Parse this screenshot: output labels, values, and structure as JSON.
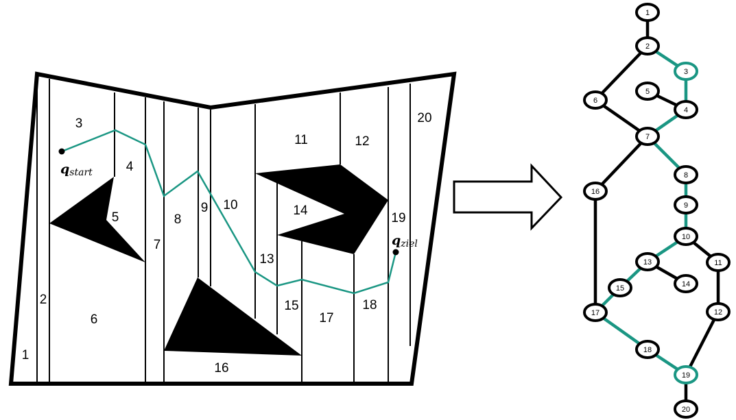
{
  "colors": {
    "outline": "#000000",
    "path": "#1a9683",
    "obstacle": "#000000",
    "background": "#ffffff"
  },
  "map": {
    "cell_labels": [
      "1",
      "2",
      "3",
      "4",
      "5",
      "6",
      "7",
      "8",
      "9",
      "10",
      "11",
      "12",
      "13",
      "14",
      "15",
      "16",
      "17",
      "18",
      "19",
      "20"
    ],
    "start_label": {
      "main": "q",
      "sub": "start"
    },
    "goal_label": {
      "main": "q",
      "sub": "ziel"
    }
  },
  "graph": {
    "nodes": [
      "1",
      "2",
      "3",
      "4",
      "5",
      "6",
      "7",
      "8",
      "9",
      "10",
      "11",
      "12",
      "13",
      "14",
      "15",
      "16",
      "17",
      "18",
      "19",
      "20"
    ],
    "edges": [
      [
        "1",
        "2"
      ],
      [
        "2",
        "3"
      ],
      [
        "2",
        "6"
      ],
      [
        "3",
        "4"
      ],
      [
        "5",
        "4"
      ],
      [
        "6",
        "7"
      ],
      [
        "4",
        "7"
      ],
      [
        "7",
        "8"
      ],
      [
        "7",
        "16"
      ],
      [
        "8",
        "9"
      ],
      [
        "9",
        "10"
      ],
      [
        "10",
        "11"
      ],
      [
        "10",
        "13"
      ],
      [
        "13",
        "14"
      ],
      [
        "13",
        "15"
      ],
      [
        "15",
        "17"
      ],
      [
        "16",
        "17"
      ],
      [
        "11",
        "12"
      ],
      [
        "17",
        "18"
      ],
      [
        "18",
        "19"
      ],
      [
        "12",
        "19"
      ],
      [
        "19",
        "20"
      ]
    ],
    "highlighted_nodes": [
      "3",
      "19"
    ],
    "highlighted_edges": [
      [
        "2",
        "3"
      ],
      [
        "3",
        "4"
      ],
      [
        "4",
        "7"
      ],
      [
        "7",
        "8"
      ],
      [
        "8",
        "9"
      ],
      [
        "9",
        "10"
      ],
      [
        "10",
        "13"
      ],
      [
        "13",
        "15"
      ],
      [
        "15",
        "17"
      ],
      [
        "17",
        "18"
      ],
      [
        "18",
        "19"
      ]
    ]
  },
  "arrow": {
    "icon": "right-arrow-icon"
  }
}
